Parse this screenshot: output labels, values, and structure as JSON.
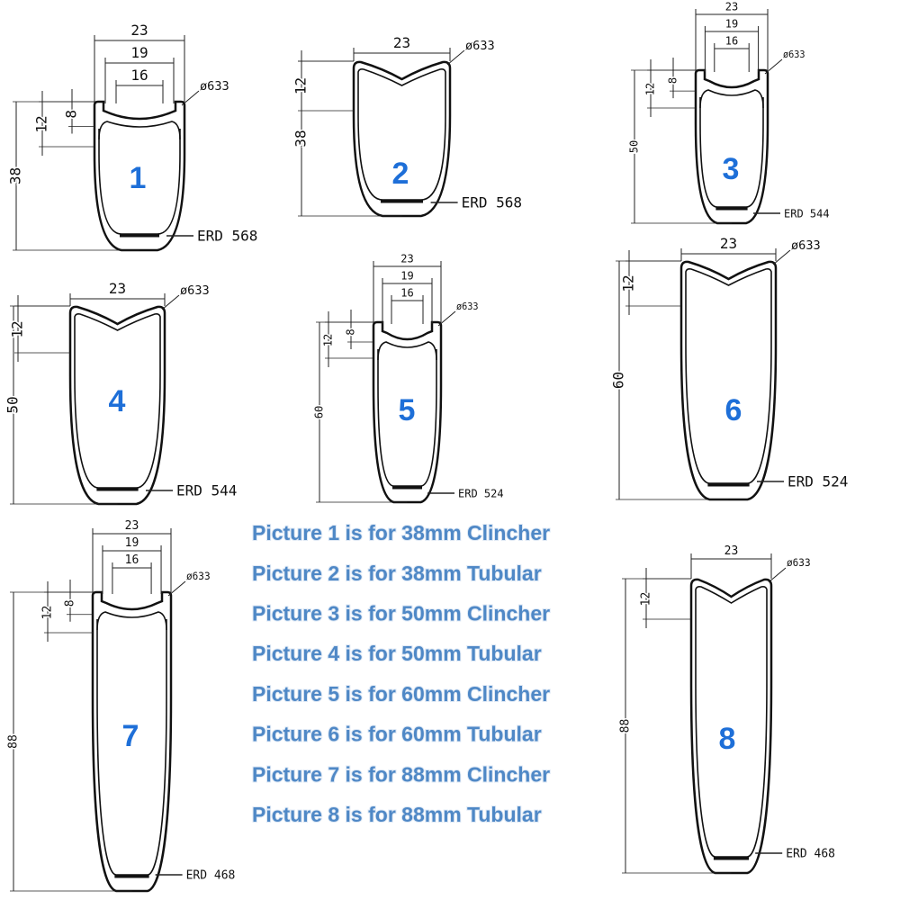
{
  "profiles": [
    {
      "number": "1",
      "depth": "38",
      "rim_width": "23",
      "inner_width": "19",
      "bead_width": "16",
      "hook_height": "12",
      "bead_height": "8",
      "diameter": "ø633",
      "erd": "ERD 568"
    },
    {
      "number": "2",
      "depth": "38",
      "rim_width": "23",
      "hook_height": "12",
      "diameter": "ø633",
      "erd": "ERD 568"
    },
    {
      "number": "3",
      "depth": "50",
      "rim_width": "23",
      "inner_width": "19",
      "bead_width": "16",
      "hook_height": "12",
      "bead_height": "8",
      "diameter": "ø633",
      "erd": "ERD 544"
    },
    {
      "number": "4",
      "depth": "50",
      "rim_width": "23",
      "hook_height": "12",
      "diameter": "ø633",
      "erd": "ERD 544"
    },
    {
      "number": "5",
      "depth": "60",
      "rim_width": "23",
      "inner_width": "19",
      "bead_width": "16",
      "hook_height": "12",
      "bead_height": "8",
      "diameter": "ø633",
      "erd": "ERD 524"
    },
    {
      "number": "6",
      "depth": "60",
      "rim_width": "23",
      "hook_height": "12",
      "diameter": "ø633",
      "erd": "ERD 524"
    },
    {
      "number": "7",
      "depth": "88",
      "rim_width": "23",
      "inner_width": "19",
      "bead_width": "16",
      "hook_height": "12",
      "bead_height": "8",
      "diameter": "ø633",
      "erd": "ERD 468"
    },
    {
      "number": "8",
      "depth": "88",
      "rim_width": "23",
      "hook_height": "12",
      "diameter": "ø633",
      "erd": "ERD 468"
    }
  ],
  "legend": [
    "Picture 1 is for 38mm Clincher",
    "Picture 2 is for 38mm Tubular",
    "Picture 3 is for 50mm Clincher",
    "Picture 4 is for 50mm Tubular",
    "Picture 5 is for 60mm Clincher",
    "Picture 6 is for 60mm Tubular",
    "Picture 7 is for 88mm Clincher",
    "Picture 8 is for 88mm Tubular"
  ]
}
